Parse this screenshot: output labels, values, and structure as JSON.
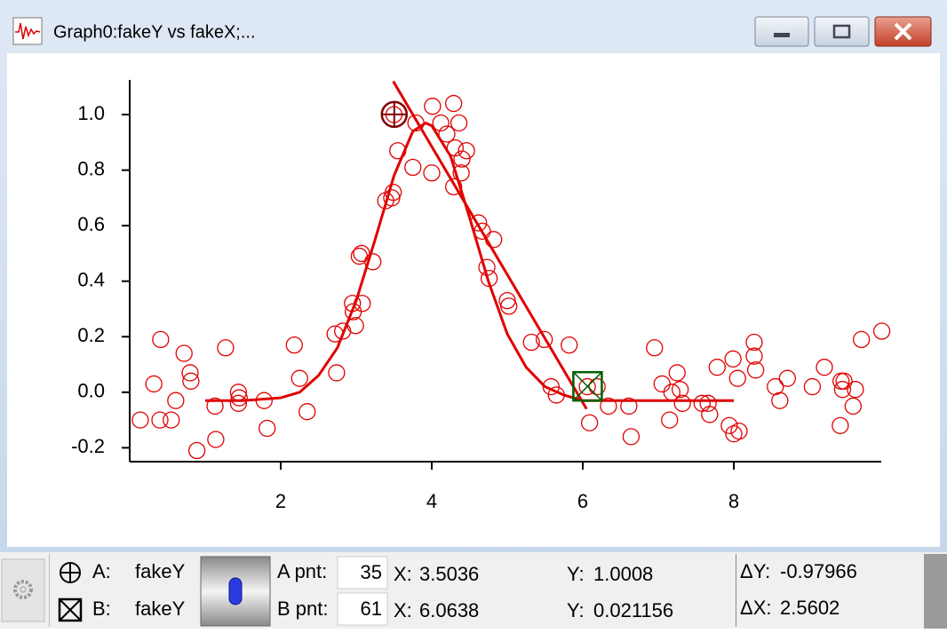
{
  "window": {
    "title": "Graph0:fakeY vs fakeX;..."
  },
  "chart_data": {
    "type": "scatter",
    "xlim": [
      0,
      10
    ],
    "ylim": [
      -0.25,
      1.125
    ],
    "xticks": [
      2,
      4,
      6,
      8
    ],
    "yticks": [
      -0.2,
      {
        "value": 0,
        "label": "0.0"
      },
      0.2,
      0.4,
      0.6,
      0.8,
      {
        "value": 1,
        "label": "1.0"
      }
    ],
    "series": [
      {
        "name": "fakeY",
        "type": "scatter",
        "color": "#e00000",
        "x": [
          0.14,
          0.32,
          0.4,
          0.41,
          0.55,
          0.61,
          0.72,
          0.8,
          0.81,
          0.89,
          1.13,
          1.14,
          1.27,
          1.44,
          1.44,
          1.45,
          1.78,
          1.82,
          2.18,
          2.25,
          2.35,
          2.74,
          2.72,
          2.82,
          2.95,
          2.96,
          2.99,
          3.04,
          3.07,
          3.08,
          3.22,
          3.39,
          3.47,
          3.49,
          3.55,
          3.5,
          3.75,
          3.79,
          4.0,
          4.01,
          4.12,
          4.2,
          4.29,
          4.31,
          4.36,
          4.29,
          4.39,
          4.4,
          4.46,
          4.62,
          4.67,
          4.73,
          4.76,
          4.82,
          5.0,
          5.02,
          5.32,
          5.49,
          5.58,
          5.65,
          5.82,
          6.06,
          6.09,
          6.19,
          6.34,
          6.61,
          6.64,
          6.95,
          7.05,
          7.15,
          7.18,
          7.25,
          7.29,
          7.32,
          7.58,
          7.66,
          7.68,
          7.78,
          7.94,
          7.99,
          8.0,
          8.05,
          8.07,
          8.27,
          8.27,
          8.29,
          8.55,
          8.61,
          8.71,
          9.04,
          9.2,
          9.41,
          9.42,
          9.44,
          9.46,
          9.58,
          9.61,
          9.69,
          9.96
        ],
        "values": [
          -0.1,
          0.03,
          -0.1,
          0.19,
          -0.1,
          -0.03,
          0.14,
          0.07,
          0.04,
          -0.21,
          -0.05,
          -0.17,
          0.16,
          0.0,
          -0.04,
          -0.02,
          -0.03,
          -0.13,
          0.17,
          0.05,
          -0.07,
          0.07,
          0.21,
          0.22,
          0.32,
          0.29,
          0.24,
          0.49,
          0.5,
          0.32,
          0.47,
          0.69,
          0.7,
          0.72,
          0.87,
          1.0,
          0.81,
          0.97,
          0.79,
          1.03,
          0.97,
          0.93,
          1.04,
          0.88,
          0.97,
          0.74,
          0.79,
          0.84,
          0.87,
          0.61,
          0.58,
          0.45,
          0.41,
          0.55,
          0.33,
          0.31,
          0.18,
          0.19,
          0.02,
          -0.01,
          0.17,
          0.02,
          -0.11,
          0.02,
          -0.05,
          -0.05,
          -0.16,
          0.16,
          0.03,
          -0.1,
          0.0,
          0.07,
          0.01,
          -0.04,
          -0.04,
          -0.04,
          -0.08,
          0.09,
          -0.12,
          0.12,
          -0.15,
          0.05,
          -0.14,
          0.18,
          0.13,
          0.08,
          0.02,
          -0.03,
          0.05,
          0.02,
          0.09,
          -0.12,
          0.04,
          0.01,
          0.04,
          -0.05,
          0.01,
          0.19,
          0.22
        ]
      },
      {
        "type": "line",
        "color": "#e00000",
        "x": [
          1.0,
          1.5,
          2.0,
          2.25,
          2.5,
          2.75,
          3.0,
          3.25,
          3.5,
          3.75,
          3.92,
          4.0,
          4.25,
          4.5,
          4.75,
          5.0,
          5.25,
          5.5,
          5.75,
          6.0,
          6.5,
          7.0,
          8.0
        ],
        "values": [
          -0.03,
          -0.03,
          -0.02,
          0.0,
          0.06,
          0.16,
          0.33,
          0.55,
          0.78,
          0.94,
          0.97,
          0.96,
          0.85,
          0.63,
          0.4,
          0.21,
          0.09,
          0.02,
          -0.01,
          -0.03,
          -0.03,
          -0.03,
          -0.03
        ]
      },
      {
        "type": "line",
        "color": "#e00000",
        "x": [
          3.49,
          6.05
        ],
        "values": [
          1.12,
          -0.06
        ]
      }
    ]
  },
  "cursor_info": {
    "a": {
      "label": "A:",
      "wave": "fakeY",
      "pnt_label": "A pnt:",
      "pnt": 35,
      "x_label": "X:",
      "x": 3.5036,
      "y_label": "Y:",
      "y": 1.0008,
      "color": "#800000"
    },
    "b": {
      "label": "B:",
      "wave": "fakeY",
      "pnt_label": "B pnt:",
      "pnt": 61,
      "x_label": "X:",
      "x": 6.0638,
      "y_label": "Y:",
      "y": 0.021156,
      "color": "#006000"
    },
    "dy_label": "ΔY:",
    "dy": -0.97966,
    "dx_label": "ΔX:",
    "dx": 2.5602
  }
}
